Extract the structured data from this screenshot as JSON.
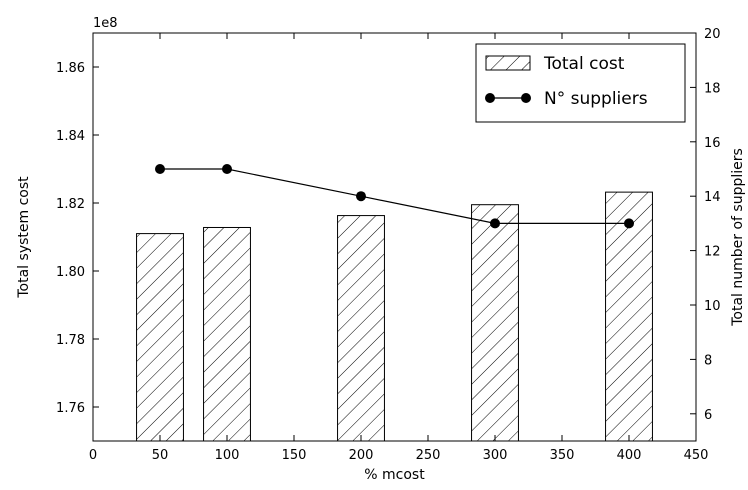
{
  "chart_data": {
    "type": "bar",
    "x": [
      50,
      100,
      200,
      300,
      400
    ],
    "xlabel": "% mcost",
    "xlim": [
      0,
      450
    ],
    "xticks": [
      "0",
      "50",
      "100",
      "150",
      "200",
      "250",
      "300",
      "350",
      "400",
      "450"
    ],
    "offset_label": "1e8",
    "series": [
      {
        "name": "Total cost",
        "type": "bar",
        "axis": "left",
        "hatch": "diagonal",
        "values": [
          1.811,
          1.8128,
          1.8163,
          1.8195,
          1.8232
        ]
      },
      {
        "name": "N° suppliers",
        "type": "line",
        "axis": "right",
        "marker": "circle",
        "values": [
          15,
          15,
          14,
          13,
          13
        ]
      }
    ],
    "left_axis": {
      "label": "Total system cost",
      "ylim": [
        1.75,
        1.87
      ],
      "ticks": [
        "1.76",
        "1.78",
        "1.80",
        "1.82",
        "1.84",
        "1.86"
      ]
    },
    "right_axis": {
      "label": "Total number of suppliers",
      "ylim": [
        5,
        20
      ],
      "ticks": [
        "6",
        "8",
        "10",
        "12",
        "14",
        "16",
        "18",
        "20"
      ]
    },
    "bar_width": 35,
    "grid": false,
    "legend": "top-right",
    "colors": {
      "bar_fill": "#ffffff",
      "line": "#000000",
      "marker": "#000000"
    }
  }
}
